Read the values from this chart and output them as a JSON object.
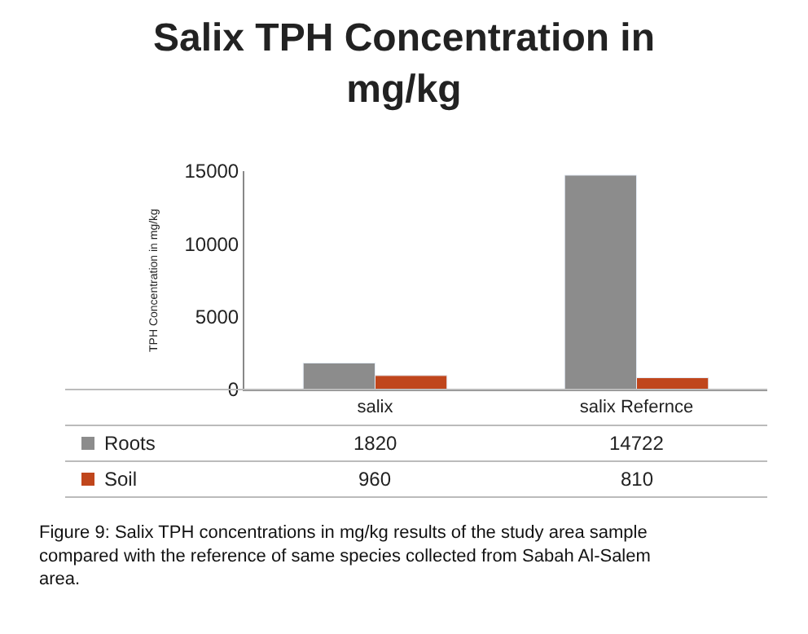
{
  "chart_data": {
    "type": "bar",
    "title": "Salix TPH Concentration in mg/kg",
    "ylabel": "TPH Concentration in mg/kg",
    "categories": [
      "salix",
      "salix Refernce"
    ],
    "series": [
      {
        "name": "Roots",
        "color": "#8c8c8c",
        "values": [
          1820,
          14722
        ]
      },
      {
        "name": "Soil",
        "color": "#c0461c",
        "values": [
          960,
          810
        ]
      }
    ],
    "ylim": [
      0,
      15000
    ],
    "yticks": [
      0,
      5000,
      10000,
      15000
    ],
    "data_labels": true,
    "legend": "bottom",
    "annotations": [
      "Figure 9: Salix TPH concentrations in mg/kg results of the study area sample compared with the reference of same species collected from Sabah Al-Salem area."
    ]
  }
}
